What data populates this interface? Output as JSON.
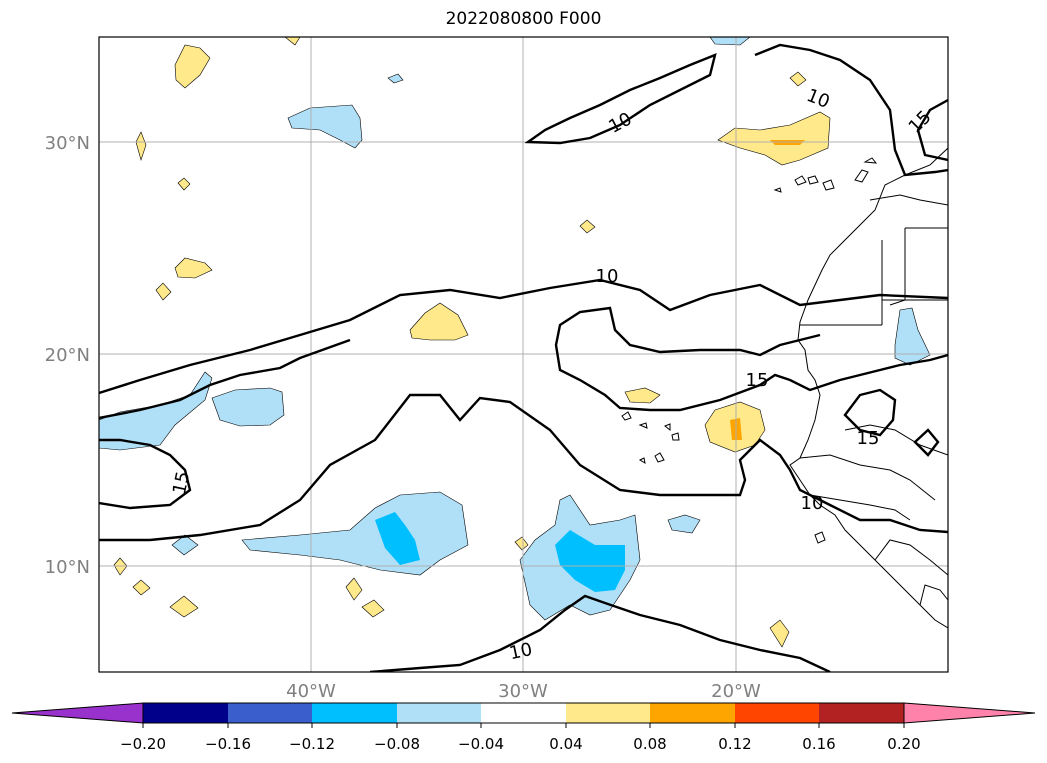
{
  "map": {
    "title": "2022080800 F000",
    "lat_labels": [
      "30°N",
      "20°N",
      "10°N"
    ],
    "lon_labels": [
      "40°W",
      "30°W",
      "20°W"
    ]
  },
  "contours": {
    "labels": [
      "10",
      "10",
      "15",
      "10",
      "15",
      "15",
      "10",
      "10",
      "15"
    ]
  },
  "colorbar": {
    "colors": [
      "#9932cc",
      "#00008b",
      "#3a5fcd",
      "#00bfff",
      "#b0e0f8",
      "#ffffff",
      "#ffe98a",
      "#ffa500",
      "#ff4500",
      "#b22222",
      "#ff82ab"
    ],
    "ticks": [
      "−0.20",
      "−0.16",
      "−0.12",
      "−0.08",
      "−0.04",
      "0.04",
      "0.08",
      "0.12",
      "0.16",
      "0.20"
    ]
  },
  "colors": {
    "grid": "#b0b0b0",
    "negative_light": "#b0e0f8",
    "negative_mid": "#00bfff",
    "positive_light": "#ffe98a",
    "positive_mid": "#ffa500"
  }
}
